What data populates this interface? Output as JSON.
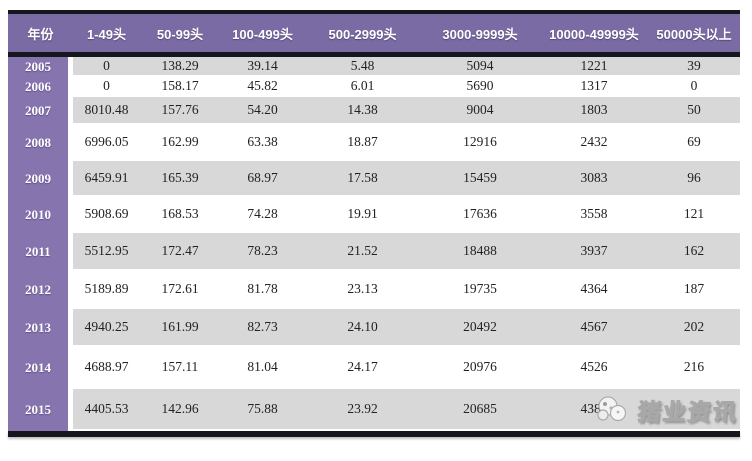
{
  "chart_data": {
    "type": "table",
    "columns": [
      "年份",
      "1-49头",
      "50-99头",
      "100-499头",
      "500-2999头",
      "3000-9999头",
      "10000-49999头",
      "50000头以上"
    ],
    "rows": [
      {
        "year": "2005",
        "values": [
          "0",
          "138.29",
          "39.14",
          "5.48",
          "5094",
          "1221",
          "39"
        ]
      },
      {
        "year": "2006",
        "values": [
          "0",
          "158.17",
          "45.82",
          "6.01",
          "5690",
          "1317",
          "0"
        ]
      },
      {
        "year": "2007",
        "values": [
          "8010.48",
          "157.76",
          "54.20",
          "14.38",
          "9004",
          "1803",
          "50"
        ]
      },
      {
        "year": "2008",
        "values": [
          "6996.05",
          "162.99",
          "63.38",
          "18.87",
          "12916",
          "2432",
          "69"
        ]
      },
      {
        "year": "2009",
        "values": [
          "6459.91",
          "165.39",
          "68.97",
          "17.58",
          "15459",
          "3083",
          "96"
        ]
      },
      {
        "year": "2010",
        "values": [
          "5908.69",
          "168.53",
          "74.28",
          "19.91",
          "17636",
          "3558",
          "121"
        ]
      },
      {
        "year": "2011",
        "values": [
          "5512.95",
          "172.47",
          "78.23",
          "21.52",
          "18488",
          "3937",
          "162"
        ]
      },
      {
        "year": "2012",
        "values": [
          "5189.89",
          "172.61",
          "81.78",
          "23.13",
          "19735",
          "4364",
          "187"
        ]
      },
      {
        "year": "2013",
        "values": [
          "4940.25",
          "161.99",
          "82.73",
          "24.10",
          "20492",
          "4567",
          "202"
        ]
      },
      {
        "year": "2014",
        "values": [
          "4688.97",
          "157.11",
          "81.04",
          "24.17",
          "20976",
          "4526",
          "216"
        ]
      },
      {
        "year": "2015",
        "values": [
          "4405.53",
          "142.96",
          "75.88",
          "23.92",
          "20685",
          "4388",
          ""
        ]
      }
    ],
    "layout": {
      "striped": true,
      "stripe_pattern": "odd-rows-gray",
      "grid": false
    }
  },
  "watermark": {
    "text": "猪业资讯",
    "icon": "pig-logo-icon"
  },
  "colors": {
    "header_purple": "#7b6ba4",
    "year_purple": "#8574ae",
    "stripe_gray": "#d8d8d8",
    "row_white": "#ffffff",
    "border_black": "#16161e",
    "text_dark": "#222222"
  }
}
